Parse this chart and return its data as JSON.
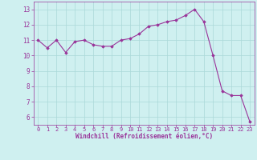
{
  "x": [
    0,
    1,
    2,
    3,
    4,
    5,
    6,
    7,
    8,
    9,
    10,
    11,
    12,
    13,
    14,
    15,
    16,
    17,
    18,
    19,
    20,
    21,
    22,
    23
  ],
  "y": [
    11.0,
    10.5,
    11.0,
    10.2,
    10.9,
    11.0,
    10.7,
    10.6,
    10.6,
    11.0,
    11.1,
    11.4,
    11.9,
    12.0,
    12.2,
    12.3,
    12.6,
    13.0,
    12.2,
    10.0,
    7.7,
    7.4,
    7.4,
    5.7
  ],
  "line_color": "#993399",
  "marker": "D",
  "marker_size": 1.8,
  "line_width": 0.8,
  "bg_color": "#cff0f0",
  "grid_color": "#aad8d8",
  "xlabel": "Windchill (Refroidissement éolien,°C)",
  "xlabel_color": "#993399",
  "tick_color": "#993399",
  "ylim": [
    5.5,
    13.5
  ],
  "xlim": [
    -0.5,
    23.5
  ],
  "yticks": [
    6,
    7,
    8,
    9,
    10,
    11,
    12,
    13
  ],
  "xticks": [
    0,
    1,
    2,
    3,
    4,
    5,
    6,
    7,
    8,
    9,
    10,
    11,
    12,
    13,
    14,
    15,
    16,
    17,
    18,
    19,
    20,
    21,
    22,
    23
  ],
  "font_family": "monospace",
  "tick_fontsize": 5.0,
  "xlabel_fontsize": 5.5
}
